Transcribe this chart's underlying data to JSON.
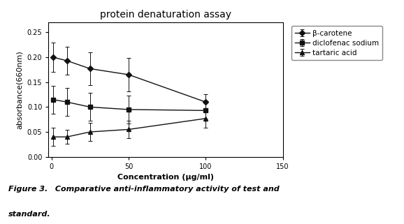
{
  "title": "protein denaturation assay",
  "xlabel": "Concentration (μg/ml)",
  "ylabel": "absorbance(660nm)",
  "xlim": [
    -2,
    150
  ],
  "ylim": [
    0.0,
    0.27
  ],
  "yticks": [
    0.0,
    0.05,
    0.1,
    0.15,
    0.2,
    0.25
  ],
  "xticks": [
    0,
    50,
    100,
    150
  ],
  "series": [
    {
      "label": "β-carotene",
      "x": [
        1,
        10,
        25,
        50,
        100
      ],
      "y": [
        0.2,
        0.193,
        0.177,
        0.165,
        0.11
      ],
      "yerr": [
        0.03,
        0.028,
        0.033,
        0.033,
        0.016
      ],
      "marker": "D",
      "color": "#111111",
      "linewidth": 1.0,
      "markersize": 4
    },
    {
      "label": "diclofenac sodium",
      "x": [
        1,
        10,
        25,
        50,
        100
      ],
      "y": [
        0.115,
        0.11,
        0.1,
        0.095,
        0.093
      ],
      "yerr": [
        0.028,
        0.028,
        0.028,
        0.028,
        0.016
      ],
      "marker": "s",
      "color": "#111111",
      "linewidth": 1.0,
      "markersize": 4
    },
    {
      "label": "tartaric acid",
      "x": [
        1,
        10,
        25,
        50,
        100
      ],
      "y": [
        0.04,
        0.04,
        0.05,
        0.055,
        0.077
      ],
      "yerr": [
        0.018,
        0.014,
        0.018,
        0.018,
        0.018
      ],
      "marker": "^",
      "color": "#111111",
      "linewidth": 1.0,
      "markersize": 4
    }
  ],
  "legend_loc": "upper right",
  "caption_line1": "Figure 3.",
  "caption_line2": "  Comparative anti-inflammatory activity of test and",
  "caption_line3": "standard.",
  "bg_color": "#ffffff",
  "title_fontsize": 10,
  "axis_label_fontsize": 8,
  "tick_fontsize": 7,
  "legend_fontsize": 7.5
}
